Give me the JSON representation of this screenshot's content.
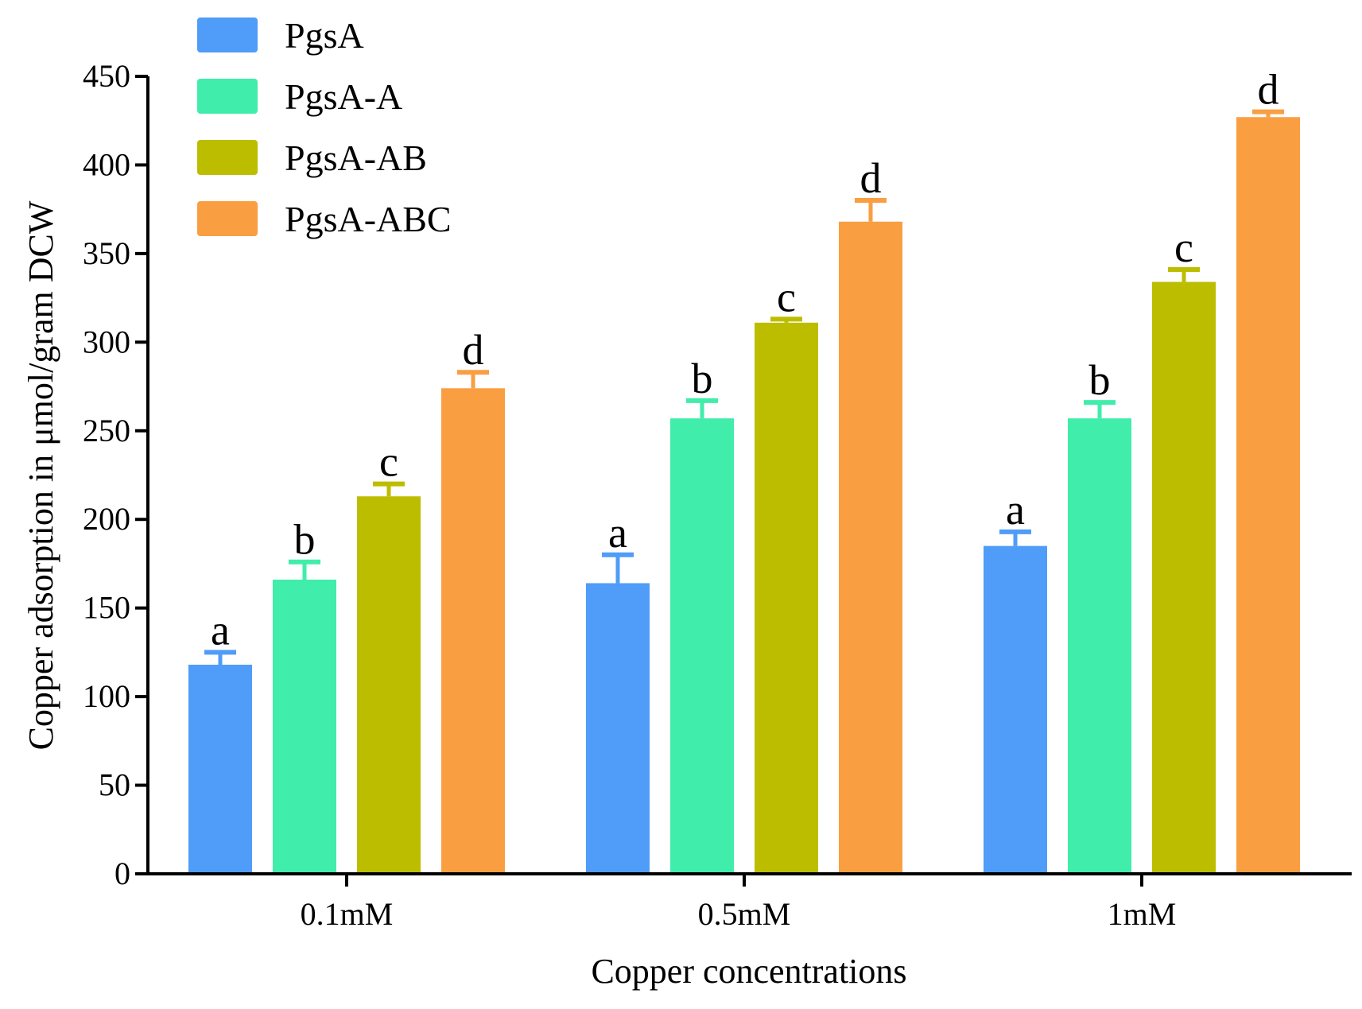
{
  "chart_data": {
    "type": "bar",
    "title": "",
    "xlabel": "Copper concentrations",
    "ylabel": "Copper adsorption in μmol/gram DCW",
    "ylim": [
      0,
      450
    ],
    "yticks": [
      0,
      50,
      100,
      150,
      200,
      250,
      300,
      350,
      400,
      450
    ],
    "categories": [
      "0.1mM",
      "0.5mM",
      "1mM"
    ],
    "legend_position": "top-left",
    "series": [
      {
        "name": "PgsA",
        "color": "#4f9cf9",
        "values": [
          118,
          164,
          185
        ],
        "errors": [
          7,
          16,
          8
        ],
        "letters": [
          "a",
          "a",
          "a"
        ]
      },
      {
        "name": "PgsA-A",
        "color": "#40edaa",
        "values": [
          166,
          257,
          257
        ],
        "errors": [
          10,
          10,
          9
        ],
        "letters": [
          "b",
          "b",
          "b"
        ]
      },
      {
        "name": "PgsA-AB",
        "color": "#bdbd00",
        "values": [
          213,
          311,
          334
        ],
        "errors": [
          7,
          2,
          7
        ],
        "letters": [
          "c",
          "c",
          "c"
        ]
      },
      {
        "name": "PgsA-ABC",
        "color": "#fa9e42",
        "values": [
          274,
          368,
          427
        ],
        "errors": [
          9,
          12,
          3
        ],
        "letters": [
          "d",
          "d",
          "d"
        ]
      }
    ]
  }
}
